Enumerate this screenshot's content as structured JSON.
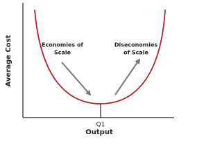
{
  "axes": {
    "x_label": "Output",
    "y_label": "Average Cost",
    "tick_label": "Q1"
  },
  "annotations": [
    {
      "lines": [
        "Economies of",
        "Scale"
      ]
    },
    {
      "lines": [
        "Diseconomies",
        "of Scale"
      ]
    }
  ]
}
